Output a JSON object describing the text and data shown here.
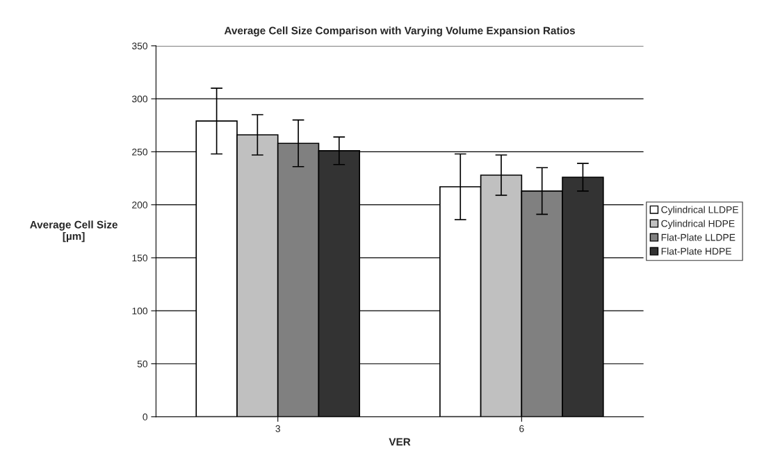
{
  "chart_data": {
    "type": "bar",
    "title": "Average Cell Size Comparison with Varying Volume Expansion Ratios",
    "xlabel": "VER",
    "ylabel": "Average Cell Size\n[µm]",
    "categories": [
      "3",
      "6"
    ],
    "series": [
      {
        "name": "Cylindrical LLDPE",
        "color": "#ffffff",
        "values": [
          279,
          217
        ],
        "errors": [
          31,
          31
        ]
      },
      {
        "name": "Cylindrical HDPE",
        "color": "#c0c0c0",
        "values": [
          266,
          228
        ],
        "errors": [
          19,
          19
        ]
      },
      {
        "name": "Flat-Plate LLDPE",
        "color": "#808080",
        "values": [
          258,
          213
        ],
        "errors": [
          22,
          22
        ]
      },
      {
        "name": "Flat-Plate HDPE",
        "color": "#333333",
        "values": [
          251,
          226
        ],
        "errors": [
          13,
          13
        ]
      }
    ],
    "ylim": [
      0,
      350
    ],
    "yticks": [
      0,
      50,
      100,
      150,
      200,
      250,
      300,
      350
    ],
    "grid": "y",
    "legend": "right"
  }
}
